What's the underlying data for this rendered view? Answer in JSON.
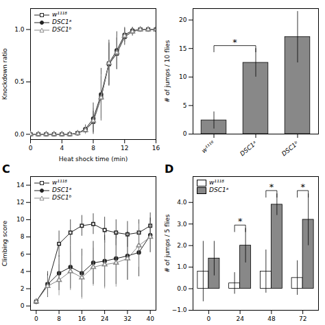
{
  "chart_data": [
    {
      "type": "line",
      "xlabel": "Heat shock time (min)",
      "ylabel": "Knockdown ratio",
      "xlim": [
        0,
        16
      ],
      "ylim": [
        -0.05,
        1.2
      ],
      "xticks": [
        0,
        4,
        8,
        12,
        16
      ],
      "yticks": [
        {
          "value": 0,
          "label": "0.0"
        },
        {
          "value": 0.5,
          "label": "0.5"
        },
        {
          "value": 1,
          "label": "1.0"
        }
      ],
      "x": [
        0,
        1,
        2,
        3,
        4,
        5,
        6,
        7,
        8,
        9,
        10,
        11,
        12,
        13,
        14,
        15,
        16
      ],
      "series": [
        {
          "name": "w¹¹¹⁸",
          "color": "#222222",
          "marker": "square",
          "values": [
            0,
            0,
            0,
            0,
            0,
            0,
            0.01,
            0.04,
            0.12,
            0.35,
            0.67,
            0.77,
            0.93,
            0.98,
            1.0,
            1.0,
            1.0
          ],
          "errors": [
            0,
            0,
            0,
            0,
            0,
            0,
            0.01,
            0.03,
            0.1,
            0.2,
            0.2,
            0.15,
            0.08,
            0.04,
            0.02,
            0.02,
            0.02
          ]
        },
        {
          "name": "DSC1ᵃ",
          "color": "#222222",
          "marker": "circle",
          "values": [
            0,
            0,
            0,
            0,
            0,
            0,
            0.01,
            0.05,
            0.15,
            0.38,
            0.68,
            0.8,
            0.95,
            0.99,
            1.0,
            1.0,
            1.0
          ],
          "errors": [
            0,
            0,
            0,
            0,
            0,
            0,
            0.01,
            0.04,
            0.15,
            0.25,
            0.22,
            0.18,
            0.07,
            0.03,
            0.02,
            0.02,
            0.02
          ]
        },
        {
          "name": "DSC1ᵇ",
          "color": "#888888",
          "marker": "triangle",
          "values": [
            0,
            0,
            0,
            0,
            0,
            0,
            0.01,
            0.04,
            0.13,
            0.35,
            0.68,
            0.78,
            0.94,
            0.98,
            1.0,
            1.0,
            1.0
          ],
          "errors": [
            0,
            0,
            0,
            0,
            0,
            0,
            0.01,
            0.04,
            0.12,
            0.22,
            0.2,
            0.16,
            0.08,
            0.04,
            0.02,
            0.02,
            0.02
          ]
        }
      ],
      "legend": "upper left"
    },
    {
      "type": "bar",
      "ylabel": "# of jumps / 10 flies",
      "categories": [
        "w¹¹¹⁸",
        "DSC1ᵃ",
        "DSC1ᵇ"
      ],
      "values": [
        2.4,
        12.5,
        17.0
      ],
      "errors": [
        1.5,
        2.5,
        4.5
      ],
      "color": "#888888",
      "ylim": [
        0,
        22
      ],
      "yticks": [
        0,
        5,
        10,
        15,
        20
      ],
      "annotations": [
        {
          "text": "*",
          "between": [
            "w¹¹¹⁸",
            "DSC1ᵃ"
          ],
          "y": 15.5
        }
      ]
    },
    {
      "type": "line",
      "ylabel": "Climbing score",
      "xlim": [
        -2,
        42
      ],
      "ylim": [
        -0.5,
        15
      ],
      "xticks": [
        0,
        8,
        16,
        24,
        32,
        40
      ],
      "yticks": [
        0,
        2,
        4,
        6,
        8,
        10,
        12,
        14
      ],
      "x": [
        0,
        4,
        8,
        12,
        16,
        20,
        24,
        28,
        32,
        36,
        40
      ],
      "series": [
        {
          "name": "w¹¹¹⁸",
          "color": "#222222",
          "marker": "square",
          "values": [
            0.5,
            2.5,
            7.2,
            8.5,
            9.3,
            9.5,
            8.8,
            8.5,
            8.3,
            8.5,
            9.3
          ],
          "errors": [
            0.3,
            1.2,
            1.5,
            1.5,
            1.2,
            1.2,
            1.5,
            1.5,
            1.5,
            1.5,
            1.5
          ]
        },
        {
          "name": "DSC1ᵃ",
          "color": "#222222",
          "marker": "circle",
          "values": [
            0.5,
            2.5,
            3.8,
            4.5,
            3.8,
            5.0,
            5.2,
            5.5,
            5.8,
            6.2,
            8.2
          ],
          "errors": [
            0.3,
            1.5,
            2.0,
            2.5,
            2.8,
            2.5,
            3.0,
            3.0,
            2.8,
            2.8,
            2.0
          ]
        },
        {
          "name": "DSC1ᵇ",
          "color": "#888888",
          "marker": "triangle",
          "values": [
            0.5,
            2.3,
            3.0,
            4.0,
            3.3,
            4.5,
            4.8,
            5.0,
            5.5,
            7.0,
            8.0
          ],
          "errors": [
            0.3,
            1.2,
            1.8,
            2.2,
            2.5,
            2.2,
            2.8,
            2.8,
            2.5,
            2.5,
            1.8
          ]
        }
      ],
      "legend": "upper left",
      "annotations": [
        {
          "text": "C"
        }
      ]
    },
    {
      "type": "bar",
      "ylabel": "# of jumps / 5 flies",
      "categories": [
        "0",
        "24",
        "48",
        "72"
      ],
      "series": [
        {
          "name": "w¹¹¹⁸",
          "color": "#ffffff",
          "values": [
            0.8,
            0.25,
            0.8,
            0.5
          ],
          "errors": [
            1.4,
            0.5,
            1.0,
            0.8
          ]
        },
        {
          "name": "DSC1ᵃ",
          "color": "#888888",
          "values": [
            1.4,
            2.0,
            3.9,
            3.2
          ],
          "errors": [
            0.8,
            0.8,
            0.5,
            1.2
          ]
        }
      ],
      "ylim": [
        -1,
        5.2
      ],
      "yticks": [
        -1,
        0,
        1,
        2,
        3,
        4
      ],
      "legend": "upper left",
      "annotations": [
        {
          "text": "*",
          "category": "24",
          "y": 2.95
        },
        {
          "text": "*",
          "category": "48",
          "y": 4.55
        },
        {
          "text": "*",
          "category": "72",
          "y": 4.55
        },
        {
          "text": "D"
        }
      ]
    }
  ]
}
